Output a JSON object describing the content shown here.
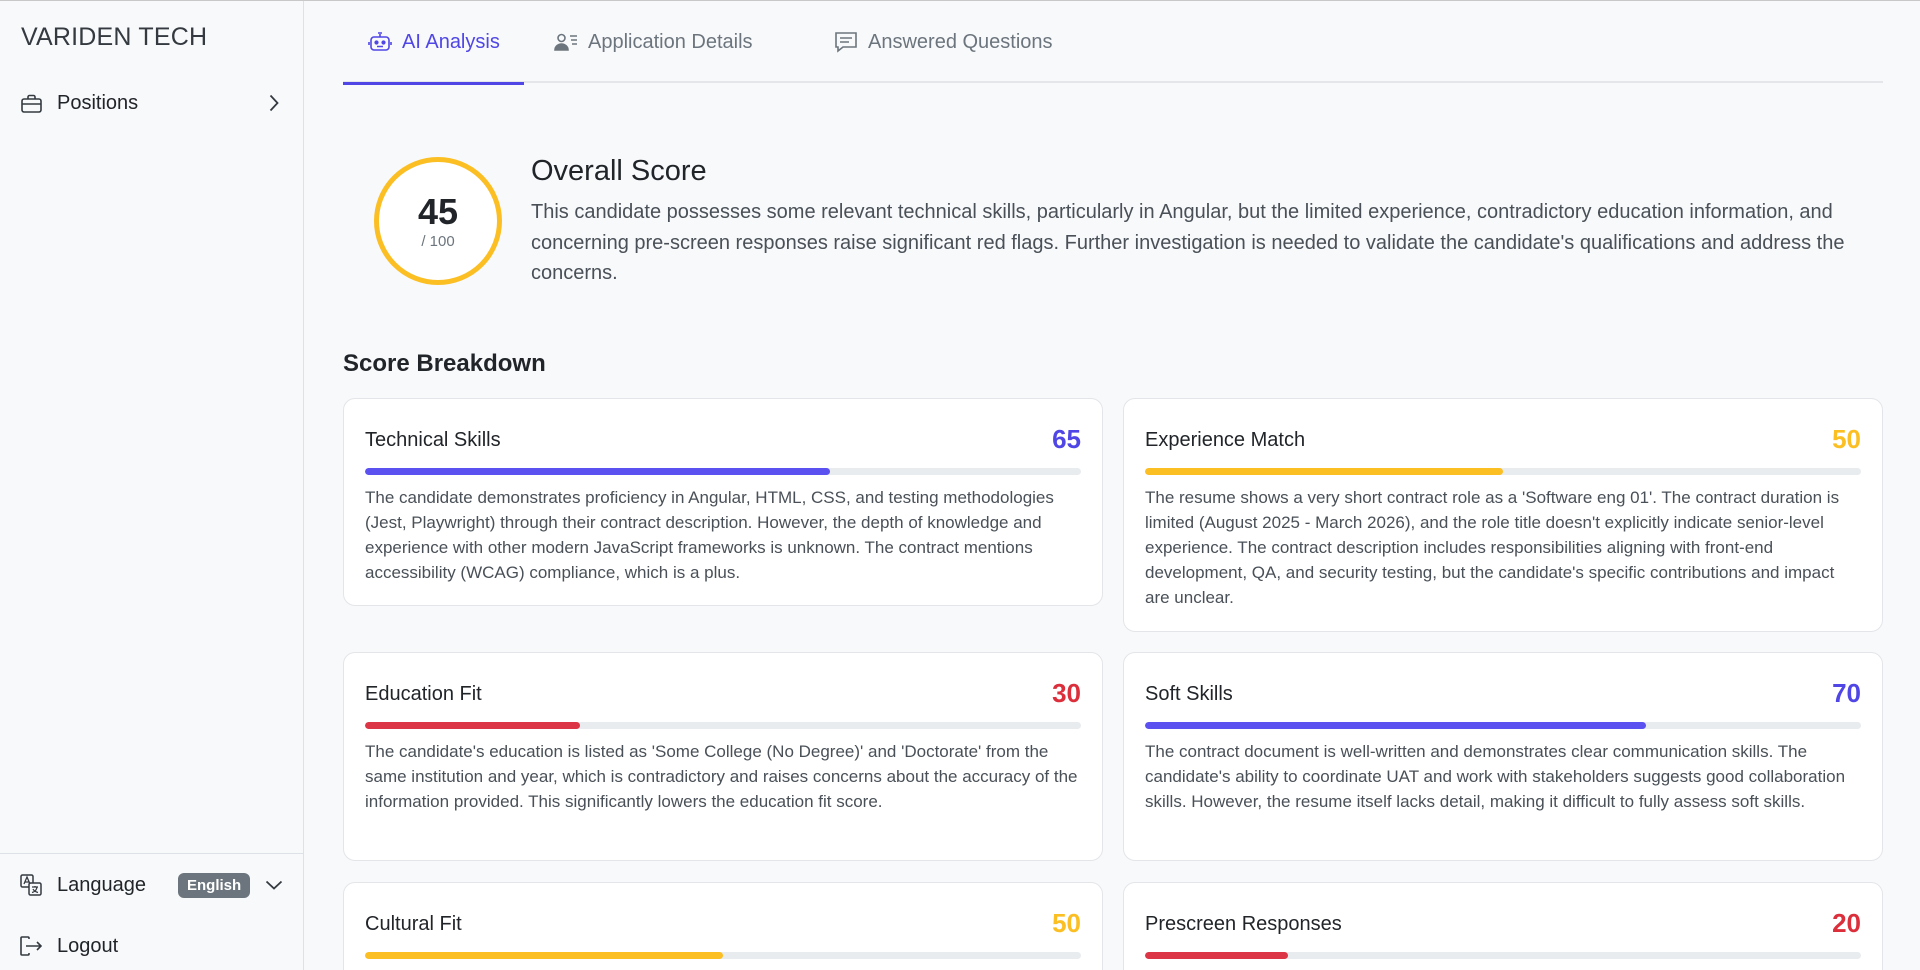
{
  "brand": "VARIDEN TECH",
  "sidebar": {
    "positions_label": "Positions",
    "language_label": "Language",
    "language_value": "English",
    "logout_label": "Logout"
  },
  "tabs": [
    {
      "label": "AI Analysis",
      "icon": "robot-icon",
      "active": true
    },
    {
      "label": "Application Details",
      "icon": "person-lines-icon",
      "active": false
    },
    {
      "label": "Answered Questions",
      "icon": "chat-text-icon",
      "active": false
    }
  ],
  "overall": {
    "score": "45",
    "out_of": "/ 100",
    "score_fraction": 0.45,
    "title": "Overall Score",
    "text": "This candidate possesses some relevant technical skills, particularly in Angular, but the limited experience, contradictory education information, and concerning pre-screen responses raise significant red flags. Further investigation is needed to validate the candidate's qualifications and address the concerns."
  },
  "breakdown": {
    "title": "Score Breakdown",
    "cards": [
      {
        "title": "Technical Skills",
        "score": "65",
        "value": 65,
        "color": "blue",
        "text": "The candidate demonstrates proficiency in Angular, HTML, CSS, and testing methodologies (Jest, Playwright) through their contract description. However, the depth of knowledge and experience with other modern JavaScript frameworks is unknown. The contract mentions accessibility (WCAG) compliance, which is a plus."
      },
      {
        "title": "Experience Match",
        "score": "50",
        "value": 50,
        "color": "yellow",
        "text": "The resume shows a very short contract role as a 'Software eng 01'. The contract duration is limited (August 2025 - March 2026), and the role title doesn't explicitly indicate senior-level experience. The contract description includes responsibilities aligning with front-end development, QA, and security testing, but the candidate's specific contributions and impact are unclear."
      },
      {
        "title": "Education Fit",
        "score": "30",
        "value": 30,
        "color": "red",
        "text": "The candidate's education is listed as 'Some College (No Degree)' and 'Doctorate' from the same institution and year, which is contradictory and raises concerns about the accuracy of the information provided. This significantly lowers the education fit score."
      },
      {
        "title": "Soft Skills",
        "score": "70",
        "value": 70,
        "color": "blue",
        "text": "The contract document is well-written and demonstrates clear communication skills. The candidate's ability to coordinate UAT and work with stakeholders suggests good collaboration skills. However, the resume itself lacks detail, making it difficult to fully assess soft skills."
      },
      {
        "title": "Cultural Fit",
        "score": "50",
        "value": 50,
        "color": "yellow",
        "text": ""
      },
      {
        "title": "Prescreen Responses",
        "score": "20",
        "value": 20,
        "color": "red",
        "text": ""
      }
    ]
  },
  "colors": {
    "accent": "#4f46e5",
    "warning": "#fbbf24",
    "danger": "#dc3545"
  }
}
